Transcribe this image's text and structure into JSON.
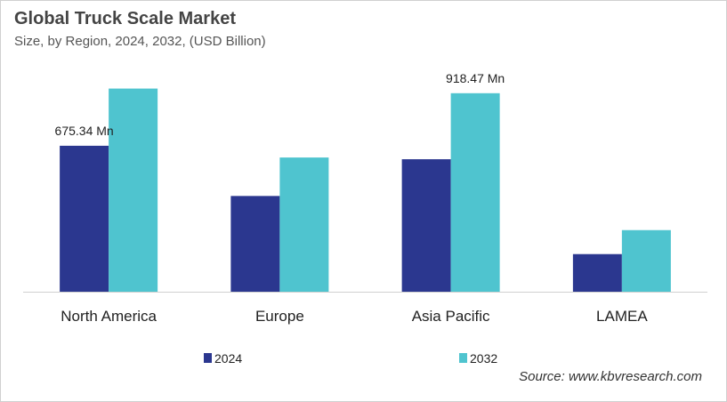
{
  "chart_data": {
    "type": "bar",
    "title": "Global Truck Scale Market",
    "subtitle": "Size, by Region, 2024, 2032, (USD Billion)",
    "categories": [
      "North America",
      "Europe",
      "Asia Pacific",
      "LAMEA"
    ],
    "series": [
      {
        "name": "2024",
        "color": "#2b378f",
        "values": [
          675.34,
          443,
          613,
          174
        ]
      },
      {
        "name": "2032",
        "color": "#4fc4cf",
        "values": [
          940,
          621,
          918.47,
          285
        ]
      }
    ],
    "data_labels": [
      {
        "series": 0,
        "category": 0,
        "text": "675.34 Mn"
      },
      {
        "series": 1,
        "category": 2,
        "text": "918.47 Mn"
      }
    ],
    "ylim": [
      0,
      1000
    ],
    "grid": false,
    "legend": "bottom",
    "source": "Source: www.kbvresearch.com"
  }
}
